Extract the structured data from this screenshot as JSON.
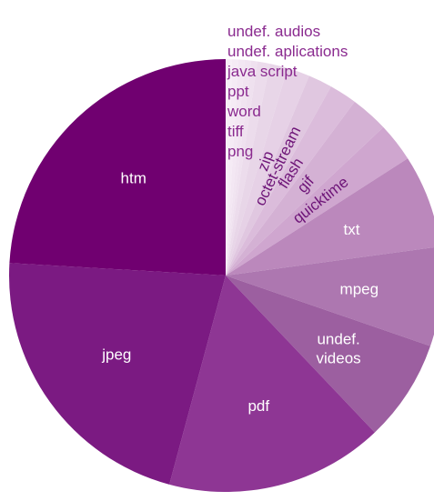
{
  "chart_data": {
    "type": "pie",
    "title": "",
    "start": "12 o'clock",
    "direction": "clockwise",
    "slices": [
      {
        "label": "png",
        "value": 0.5,
        "color": "#f7eef7",
        "label_style": "list"
      },
      {
        "label": "tiff",
        "value": 0.5,
        "color": "#f5ebf5",
        "label_style": "list"
      },
      {
        "label": "word",
        "value": 0.5,
        "color": "#f3e7f3",
        "label_style": "list"
      },
      {
        "label": "ppt",
        "value": 0.5,
        "color": "#f1e4f1",
        "label_style": "list"
      },
      {
        "label": "java script",
        "value": 0.5,
        "color": "#efe1ef",
        "label_style": "list"
      },
      {
        "label": "undef. aplications",
        "value": 1.0,
        "color": "#ecdcec",
        "label_style": "list"
      },
      {
        "label": "undef. audios",
        "value": 1.4,
        "color": "#e8d6e8",
        "label_style": "list"
      },
      {
        "label": "zip",
        "value": 1.8,
        "color": "#e6d1e6",
        "label_style": "rotated"
      },
      {
        "label": "octet-stream",
        "value": 1.9,
        "color": "#e0c7e0",
        "label_style": "rotated"
      },
      {
        "label": "flash",
        "value": 2.2,
        "color": "#dbbcdb",
        "label_style": "rotated"
      },
      {
        "label": "gif",
        "value": 3.0,
        "color": "#d4b1d4",
        "label_style": "rotated"
      },
      {
        "label": "quicktime",
        "value": 3.1,
        "color": "#cfa6cf",
        "label_style": "rotated"
      },
      {
        "label": "txt",
        "value": 7.4,
        "color": "#bb88bc",
        "label_style": "inside"
      },
      {
        "label": "mpeg",
        "value": 7.9,
        "color": "#ad77b0",
        "label_style": "inside"
      },
      {
        "label": "undef.\nvideos",
        "value": 8.1,
        "color": "#9c5fa0",
        "label_style": "inside"
      },
      {
        "label": "pdf",
        "value": 17.3,
        "color": "#8e3694",
        "label_style": "inside"
      },
      {
        "label": "jpeg",
        "value": 23.1,
        "color": "#7b1a82",
        "label_style": "inside"
      },
      {
        "label": "htm",
        "value": 25.6,
        "color": "#700070",
        "label_style": "inside"
      }
    ]
  }
}
